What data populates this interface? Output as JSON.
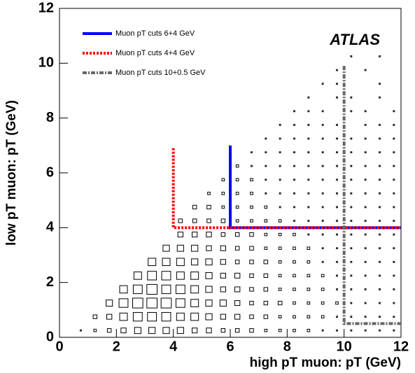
{
  "chart_data": {
    "type": "box2d",
    "xlabel": "high pT muon: pT (GeV)",
    "ylabel": "low pT muon: pT (GeV)",
    "annotation": "ATLAS",
    "xlim": [
      0,
      12
    ],
    "ylim": [
      0,
      12
    ],
    "xticks": [
      0,
      2,
      4,
      6,
      8,
      10,
      12
    ],
    "yticks": [
      0,
      2,
      4,
      6,
      8,
      10,
      12
    ],
    "x_bins": [
      0,
      0.5,
      1,
      1.5,
      2,
      2.5,
      3,
      3.5,
      4,
      4.5,
      5,
      5.5,
      6,
      6.5,
      7,
      7.5,
      8,
      8.5,
      9,
      9.5,
      10,
      10.5,
      11,
      11.5,
      12
    ],
    "y_bins": [
      0,
      0.5,
      1,
      1.5,
      2,
      2.5,
      3,
      3.5,
      4,
      4.5,
      5,
      5.5,
      6,
      6.5,
      7,
      7.5,
      8,
      8.5,
      9,
      9.5,
      10,
      10.5
    ],
    "box_max": 10,
    "counts": [
      [
        0,
        1,
        2,
        3,
        4,
        5,
        5,
        5,
        5,
        4,
        4,
        3,
        3,
        3,
        2,
        2,
        2,
        2,
        1,
        1,
        1,
        1,
        1,
        1
      ],
      [
        0,
        0,
        3,
        4,
        6,
        7,
        7,
        7,
        6,
        6,
        5,
        4,
        4,
        3,
        3,
        2,
        2,
        2,
        2,
        1,
        1,
        1,
        1,
        1
      ],
      [
        0,
        0,
        0,
        5,
        7,
        8,
        8,
        8,
        7,
        6,
        5,
        5,
        4,
        3,
        3,
        3,
        2,
        2,
        2,
        2,
        1,
        1,
        1,
        1
      ],
      [
        0,
        0,
        0,
        0,
        6,
        7,
        8,
        7,
        7,
        6,
        5,
        4,
        4,
        3,
        3,
        2,
        2,
        2,
        2,
        1,
        1,
        1,
        1,
        1
      ],
      [
        0,
        0,
        0,
        0,
        0,
        6,
        7,
        7,
        6,
        6,
        5,
        4,
        4,
        3,
        3,
        2,
        2,
        2,
        2,
        1,
        1,
        1,
        1,
        1
      ],
      [
        0,
        0,
        0,
        0,
        0,
        0,
        6,
        6,
        6,
        5,
        5,
        4,
        3,
        3,
        3,
        2,
        2,
        2,
        1,
        1,
        1,
        1,
        1,
        1
      ],
      [
        0,
        0,
        0,
        0,
        0,
        0,
        0,
        5,
        5,
        5,
        4,
        4,
        3,
        3,
        2,
        2,
        2,
        2,
        1,
        1,
        1,
        1,
        1,
        1
      ],
      [
        0,
        0,
        0,
        0,
        0,
        0,
        0,
        0,
        4,
        4,
        4,
        3,
        3,
        3,
        2,
        2,
        2,
        1,
        1,
        1,
        1,
        1,
        1,
        1
      ],
      [
        0,
        0,
        0,
        0,
        0,
        0,
        0,
        0,
        3,
        3,
        3,
        3,
        2,
        2,
        2,
        2,
        1,
        1,
        1,
        1,
        1,
        1,
        1,
        1
      ],
      [
        0,
        0,
        0,
        0,
        0,
        0,
        0,
        0,
        0,
        3,
        3,
        2,
        2,
        2,
        2,
        1,
        1,
        1,
        1,
        1,
        1,
        1,
        1,
        1
      ],
      [
        0,
        0,
        0,
        0,
        0,
        0,
        0,
        0,
        0,
        0,
        2,
        2,
        2,
        2,
        1,
        1,
        1,
        1,
        1,
        1,
        1,
        1,
        1,
        1
      ],
      [
        0,
        0,
        0,
        0,
        0,
        0,
        0,
        0,
        0,
        0,
        0,
        2,
        2,
        2,
        1,
        1,
        1,
        1,
        1,
        1,
        1,
        1,
        1,
        1
      ],
      [
        0,
        0,
        0,
        0,
        0,
        0,
        0,
        0,
        0,
        0,
        0,
        0,
        2,
        1,
        1,
        1,
        1,
        1,
        1,
        1,
        1,
        1,
        1,
        1
      ],
      [
        0,
        0,
        0,
        0,
        0,
        0,
        0,
        0,
        0,
        0,
        0,
        0,
        0,
        1,
        1,
        1,
        1,
        1,
        1,
        1,
        1,
        1,
        1,
        1
      ],
      [
        0,
        0,
        0,
        0,
        0,
        0,
        0,
        0,
        0,
        0,
        0,
        0,
        0,
        0,
        1,
        1,
        1,
        1,
        1,
        1,
        1,
        1,
        1,
        1
      ],
      [
        0,
        0,
        0,
        0,
        0,
        0,
        0,
        0,
        0,
        0,
        0,
        0,
        0,
        0,
        0,
        1,
        1,
        1,
        1,
        1,
        0,
        1,
        1,
        1
      ],
      [
        0,
        0,
        0,
        0,
        0,
        0,
        0,
        0,
        0,
        0,
        0,
        0,
        0,
        0,
        0,
        0,
        1,
        1,
        1,
        0,
        1,
        1,
        0,
        1
      ],
      [
        0,
        0,
        0,
        0,
        0,
        0,
        0,
        0,
        0,
        0,
        0,
        0,
        0,
        0,
        0,
        0,
        0,
        1,
        0,
        1,
        1,
        0,
        1,
        0
      ],
      [
        0,
        0,
        0,
        0,
        0,
        0,
        0,
        0,
        0,
        0,
        0,
        0,
        0,
        0,
        0,
        0,
        0,
        0,
        1,
        1,
        0,
        0,
        1,
        0
      ],
      [
        0,
        0,
        0,
        0,
        0,
        0,
        0,
        0,
        0,
        0,
        0,
        0,
        0,
        0,
        0,
        0,
        0,
        0,
        0,
        1,
        0,
        1,
        0,
        0
      ],
      [
        0,
        0,
        0,
        0,
        0,
        0,
        0,
        0,
        0,
        0,
        0,
        0,
        0,
        0,
        0,
        0,
        0,
        0,
        0,
        0,
        1,
        0,
        1,
        0
      ]
    ],
    "series": [
      {
        "name": "Muon pT cuts 6+4 GeV",
        "color": "#0000ff",
        "dash": "solid",
        "x": [
          6,
          6,
          12
        ],
        "y": [
          7,
          4,
          4
        ]
      },
      {
        "name": "Muon pT cuts 4+4 GeV",
        "color": "#ff0000",
        "dash": "dotted",
        "x": [
          4,
          4,
          12
        ],
        "y": [
          6.9,
          4,
          4
        ]
      },
      {
        "name": "Muon pT cuts 10+0.5 GeV",
        "color": "#666666",
        "dash": "dashdot",
        "x": [
          10,
          10,
          12
        ],
        "y": [
          9.9,
          0.5,
          0.5
        ]
      }
    ]
  }
}
